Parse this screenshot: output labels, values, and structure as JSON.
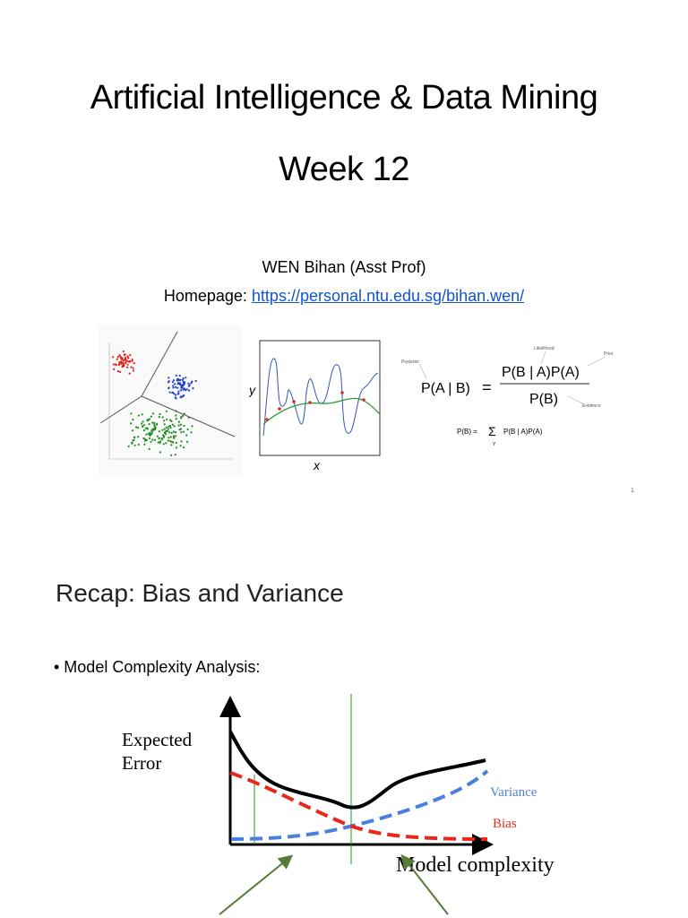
{
  "slide1": {
    "title": "Artificial Intelligence & Data Mining",
    "subtitle": "Week 12",
    "author": "WEN Bihan (Asst Prof)",
    "homepage_label": "Homepage: ",
    "homepage_url": "https://personal.ntu.edu.sg/bihan.wen/",
    "page_number": "1",
    "fit_plot": {
      "y_label": "y",
      "x_label": "x"
    },
    "bayes": {
      "lhs": "P(A | B)",
      "equals": "=",
      "numerator": "P(B | A)P(A)",
      "denominator": "P(B)",
      "marginal": "P(B) = ",
      "sum_index": "Y",
      "sum_term": "P(B | A)P(A)",
      "posterior": "Posterior",
      "likelihood": "Likelihood",
      "prior": "Prior",
      "evidence": "Evidence"
    }
  },
  "slide2": {
    "title": "Recap: Bias and Variance",
    "bullet": "• Model Complexity Analysis:",
    "chart": {
      "y_label_line1": "Expected",
      "y_label_line2": "Error",
      "x_label": "Model complexity",
      "variance_label": "Variance",
      "bias_label": "Bias"
    }
  },
  "colors": {
    "link": "#1155cc",
    "variance": "#4a7fe0",
    "bias": "#e8281a",
    "marker_line": "#2e8b2e"
  }
}
